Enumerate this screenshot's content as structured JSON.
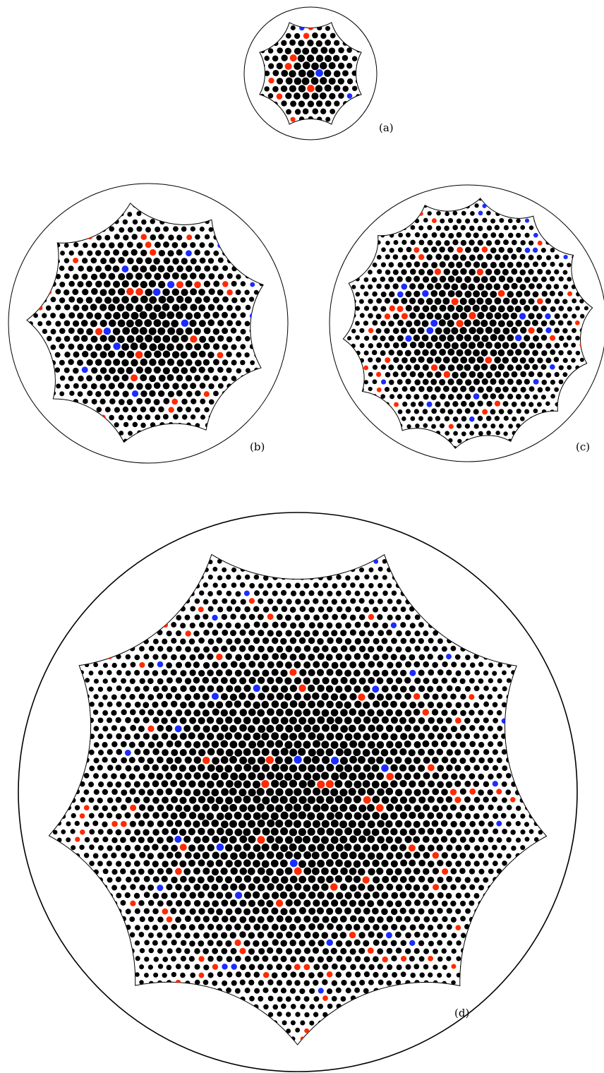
{
  "colors": {
    "background": "#ffffff",
    "particle_default": "#000000",
    "particle_excess": "#ff2a00",
    "particle_deficit": "#1a2cff",
    "outline": "#000000"
  },
  "panels": [
    {
      "id": "a",
      "label": "(a)",
      "cusps": 8
    },
    {
      "id": "b",
      "label": "(b)",
      "cusps": 9
    },
    {
      "id": "c",
      "label": "(c)",
      "cusps": 14
    },
    {
      "id": "d",
      "label": "(d)",
      "cusps": 9
    }
  ]
}
